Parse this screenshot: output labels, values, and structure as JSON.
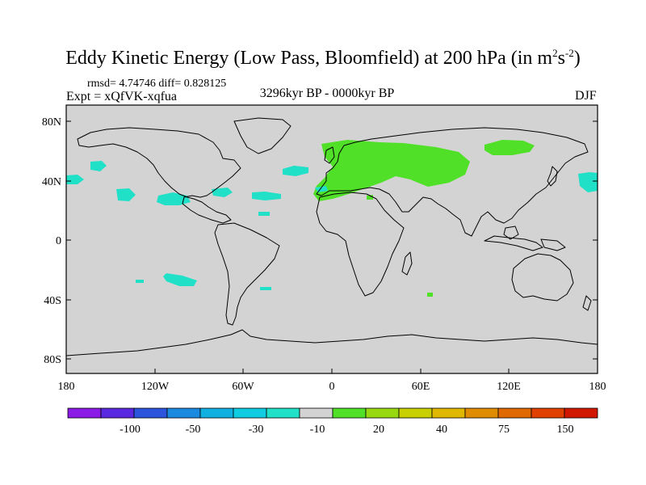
{
  "title": {
    "main": "Eddy Kinetic Energy (Low Pass, Bloomfield) at 200 hPa (in m",
    "sup1": "2",
    "mid": "s",
    "sup2": "-2",
    "close": ")"
  },
  "stats": "rmsd= 4.74746 diff= 0.828125",
  "experiment": "Expt = xQfVK-xqfua",
  "period": "3296kyr BP - 0000kyr BP",
  "season": "DJF",
  "map": {
    "lat_labels": [
      "80N",
      "40N",
      "0",
      "40S",
      "80S"
    ],
    "lon_labels": [
      "180",
      "120W",
      "60W",
      "0",
      "60E",
      "120E",
      "180"
    ],
    "background_color": "#d3d3d3"
  },
  "colorbar": {
    "colors": [
      "#8a1ae6",
      "#5a28e0",
      "#2a55dc",
      "#1a8ae0",
      "#10b0e0",
      "#10cce0",
      "#20e0c8",
      "#d3d3d3",
      "#50e028",
      "#98d810",
      "#c8d000",
      "#e0b800",
      "#e08c00",
      "#e06800",
      "#e04000",
      "#d01800"
    ],
    "labels": [
      "-100",
      "-50",
      "-30",
      "-10",
      "20",
      "40",
      "75",
      "150"
    ]
  }
}
